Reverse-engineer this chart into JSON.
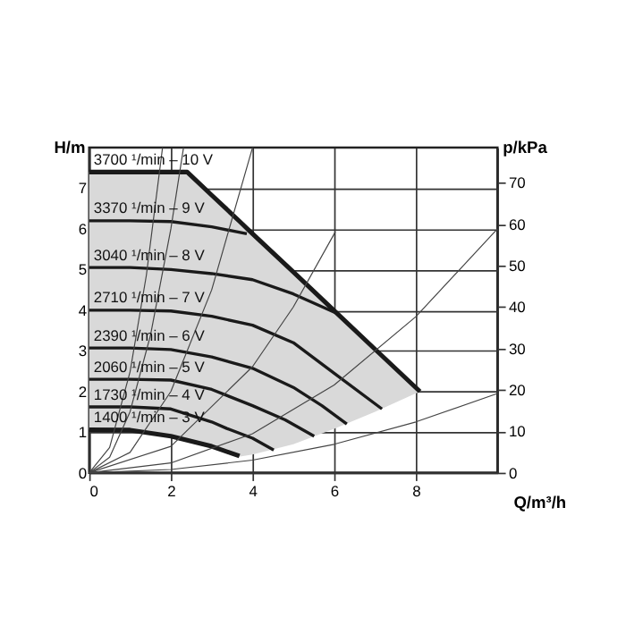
{
  "chart_data": {
    "type": "line",
    "xlabel": "Q/m³/h",
    "ylabel": "H/m",
    "y2label": "p/kPa",
    "xlim": [
      0,
      10
    ],
    "xticks": [
      0,
      2,
      4,
      6,
      8
    ],
    "ylim": [
      0,
      8
    ],
    "yticks": [
      0,
      1,
      2,
      3,
      4,
      5,
      6,
      7
    ],
    "y2lim": [
      0,
      78.5
    ],
    "y2ticks": [
      0,
      10,
      20,
      30,
      40,
      50,
      60,
      70
    ],
    "grid": true,
    "series": [
      {
        "name": "3700 ¹/min – 10 V",
        "color": "#1a1a1a",
        "x": [
          0,
          1,
          2,
          2.4,
          3,
          3.7,
          4,
          5,
          6,
          7,
          8.1
        ],
        "values": [
          7.4,
          7.4,
          7.4,
          7.4,
          6.83,
          6.17,
          5.88,
          4.94,
          3.99,
          3.04,
          2.0
        ],
        "lower": [
          1.06,
          1.03,
          0.92,
          0.82,
          0.63,
          0.4,
          0.45,
          0.7,
          1.08,
          1.5,
          2.0
        ],
        "upper": [
          7.4,
          7.4,
          7.4,
          7.4,
          6.83,
          6.17,
          5.88,
          4.94,
          3.99,
          3.04,
          2.0
        ]
      },
      {
        "name": "3370 ¹/min – 9 V",
        "color": "#1a1a1a",
        "x": [
          0,
          1,
          2,
          3,
          3.86
        ],
        "values": [
          6.2,
          6.2,
          6.18,
          6.05,
          5.88
        ]
      },
      {
        "name": "3040 ¹/min – 8 V",
        "color": "#1a1a1a",
        "x": [
          0,
          1,
          2,
          3,
          4,
          5,
          6.07
        ],
        "values": [
          5.05,
          5.05,
          5.0,
          4.9,
          4.75,
          4.4,
          3.92
        ]
      },
      {
        "name": "2710 ¹/min – 7 V",
        "color": "#1a1a1a",
        "x": [
          0,
          1,
          2,
          3,
          4,
          5,
          6,
          7.17
        ],
        "values": [
          4.0,
          4.0,
          3.98,
          3.85,
          3.63,
          3.2,
          2.45,
          1.57
        ]
      },
      {
        "name": "2390 ¹/min – 6 V",
        "color": "#1a1a1a",
        "x": [
          0,
          1,
          2,
          3,
          4,
          5,
          5.7,
          6.31
        ],
        "values": [
          3.07,
          3.07,
          3.03,
          2.85,
          2.57,
          2.1,
          1.65,
          1.2
        ]
      },
      {
        "name": "2060 ¹/min – 5 V",
        "color": "#1a1a1a",
        "x": [
          0,
          1,
          2,
          3,
          4,
          4.8,
          5.51
        ],
        "values": [
          2.3,
          2.3,
          2.28,
          2.05,
          1.65,
          1.3,
          0.9
        ]
      },
      {
        "name": "1730 ¹/min – 4 V",
        "color": "#1a1a1a",
        "x": [
          0,
          1,
          2,
          3,
          3.37,
          4,
          4.52
        ],
        "values": [
          1.62,
          1.62,
          1.57,
          1.25,
          1.09,
          0.85,
          0.56
        ]
      },
      {
        "name": "1400 ¹/min – 3 V",
        "color": "#1a1a1a",
        "x": [
          0,
          1,
          2,
          3,
          3.68
        ],
        "values": [
          1.06,
          1.05,
          0.9,
          0.65,
          0.41
        ]
      },
      {
        "color": "#444444",
        "x": [
          0,
          0.5,
          1,
          1.4,
          1.796
        ],
        "values": [
          0,
          0.62,
          2.48,
          4.86,
          8.0
        ]
      },
      {
        "color": "#444444",
        "x": [
          0,
          0.5,
          1,
          1.5,
          2.0,
          2.31
        ],
        "values": [
          0,
          0.38,
          1.5,
          3.38,
          6.0,
          8.0
        ]
      },
      {
        "color": "#444444",
        "x": [
          0,
          1,
          2,
          3,
          4
        ],
        "values": [
          0,
          0.5,
          2,
          4.5,
          8
        ]
      },
      {
        "color": "#444444",
        "x": [
          0,
          2,
          4,
          5,
          6.03
        ],
        "values": [
          0,
          0.65,
          2.61,
          4.08,
          5.93
        ]
      },
      {
        "color": "#444444",
        "x": [
          0,
          2,
          4,
          6,
          8,
          10
        ],
        "values": [
          0,
          0.24,
          0.96,
          2.16,
          3.84,
          6.0
        ]
      },
      {
        "color": "#444444",
        "x": [
          0,
          2,
          4,
          6,
          8,
          10
        ],
        "values": [
          0,
          0.08,
          0.31,
          0.7,
          1.25,
          1.95
        ]
      }
    ]
  }
}
